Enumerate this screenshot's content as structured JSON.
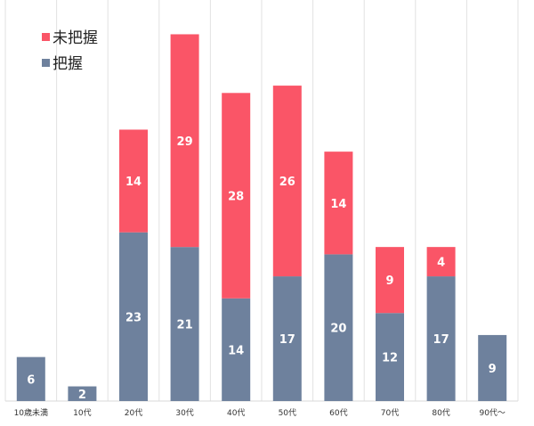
{
  "chart_data": {
    "type": "bar",
    "stacked": true,
    "categories": [
      "10歳未満",
      "10代",
      "20代",
      "30代",
      "40代",
      "50代",
      "60代",
      "70代",
      "80代",
      "90代～"
    ],
    "series": [
      {
        "name": "把握",
        "color": "#6E819D",
        "values": [
          6,
          2,
          23,
          21,
          14,
          17,
          20,
          12,
          17,
          9
        ]
      },
      {
        "name": "未把握",
        "color": "#FA5567",
        "values": [
          0,
          0,
          14,
          29,
          28,
          26,
          14,
          9,
          4,
          0
        ]
      }
    ],
    "legend": {
      "position": "top-left",
      "order": [
        "未把握",
        "把握"
      ]
    },
    "ylim": [
      0,
      52
    ],
    "grid": "vertical",
    "title": "",
    "xlabel": "",
    "ylabel": ""
  }
}
